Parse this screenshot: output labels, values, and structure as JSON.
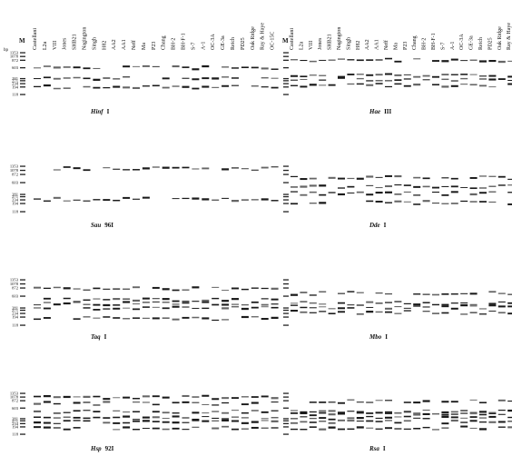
{
  "figure": {
    "marker_header": "M",
    "unit_label": "bp",
    "lanes": [
      "Castellani",
      "L2a",
      "VIII",
      "Jones",
      "SHB21",
      "Nagington",
      "Singh",
      "H82",
      "AA2",
      "AA1",
      "Neff",
      "Ma",
      "P23",
      "Chang",
      "BH-2",
      "BH-F-1",
      "S-7",
      "A-1",
      "OC-3A",
      "GE-3a",
      "Reich",
      "PD25",
      "Oak Ridge",
      "Ray & Haye",
      "OC-15C"
    ],
    "marker_sizes": [
      "1353",
      "1078",
      "872",
      "603",
      "281",
      "271",
      "234",
      "194",
      "118"
    ],
    "panels": [
      {
        "id": "hinf1",
        "enzyme": "Hinf",
        "suffix": "I",
        "show_marker_labels": true,
        "show_lane_labels": true,
        "show_bp": true
      },
      {
        "id": "haeiii",
        "enzyme": "Hae",
        "suffix": "III",
        "show_marker_labels": false,
        "show_lane_labels": true,
        "show_bp": false
      },
      {
        "id": "sau96i",
        "enzyme": "Sau",
        "suffix": "96I",
        "show_marker_labels": true,
        "show_lane_labels": false,
        "show_bp": false
      },
      {
        "id": "ddei",
        "enzyme": "Dde",
        "suffix": "I",
        "show_marker_labels": false,
        "show_lane_labels": false,
        "show_bp": false
      },
      {
        "id": "taqi",
        "enzyme": "Taq",
        "suffix": "I",
        "show_marker_labels": true,
        "show_lane_labels": false,
        "show_bp": false
      },
      {
        "id": "mboi",
        "enzyme": "Mbo",
        "suffix": "I",
        "show_marker_labels": false,
        "show_lane_labels": false,
        "show_bp": false
      },
      {
        "id": "hsp92i",
        "enzyme": "Hsp",
        "suffix": "92I",
        "show_marker_labels": true,
        "show_lane_labels": false,
        "show_bp": false
      },
      {
        "id": "rsai",
        "enzyme": "Rsa",
        "suffix": "I",
        "show_marker_labels": false,
        "show_lane_labels": false,
        "show_bp": false
      }
    ]
  }
}
